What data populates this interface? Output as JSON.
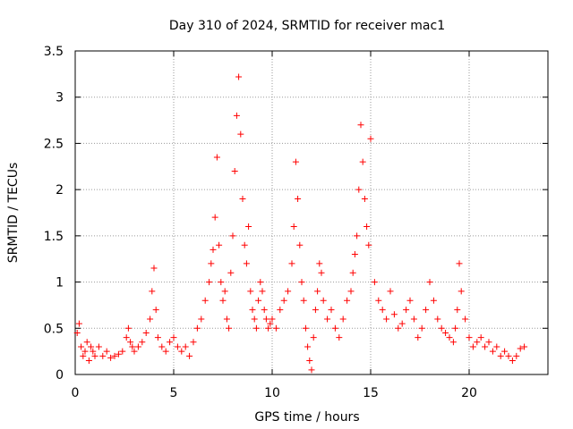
{
  "chart_data": {
    "type": "scatter",
    "title": "Day 310 of 2024, SRMTID for receiver mac1",
    "xlabel": "GPS time / hours",
    "ylabel": "SRMTID / TECUs",
    "xlim": [
      0,
      24
    ],
    "ylim": [
      0,
      3.5
    ],
    "grid": true,
    "legend": "none",
    "marker": "+",
    "color": "#ff0000",
    "x_ticks": [
      {
        "value": 0,
        "label": "0"
      },
      {
        "value": 5,
        "label": "5"
      },
      {
        "value": 10,
        "label": "10"
      },
      {
        "value": 15,
        "label": "15"
      },
      {
        "value": 20,
        "label": "20"
      }
    ],
    "y_ticks": [
      {
        "value": 0,
        "label": "0"
      },
      {
        "value": 0.5,
        "label": "0.5"
      },
      {
        "value": 1,
        "label": "1"
      },
      {
        "value": 1.5,
        "label": "1.5"
      },
      {
        "value": 2,
        "label": "2"
      },
      {
        "value": 2.5,
        "label": "2.5"
      },
      {
        "value": 3,
        "label": "3"
      },
      {
        "value": 3.5,
        "label": "3.5"
      }
    ],
    "series": [
      {
        "name": "SRMTID",
        "x": [
          0.1,
          0.2,
          0.3,
          0.4,
          0.5,
          0.6,
          0.7,
          0.8,
          0.9,
          1.0,
          1.2,
          1.4,
          1.6,
          1.8,
          2.0,
          2.2,
          2.4,
          2.6,
          2.7,
          2.8,
          2.9,
          3.0,
          3.2,
          3.4,
          3.6,
          3.8,
          3.9,
          4.0,
          4.1,
          4.2,
          4.4,
          4.6,
          4.8,
          5.0,
          5.2,
          5.4,
          5.6,
          5.8,
          6.0,
          6.2,
          6.4,
          6.6,
          6.8,
          6.9,
          7.0,
          7.1,
          7.2,
          7.3,
          7.4,
          7.5,
          7.6,
          7.7,
          7.8,
          7.9,
          8.0,
          8.1,
          8.2,
          8.3,
          8.4,
          8.5,
          8.6,
          8.7,
          8.8,
          8.9,
          9.0,
          9.1,
          9.2,
          9.3,
          9.4,
          9.5,
          9.6,
          9.7,
          9.8,
          9.9,
          10.0,
          10.2,
          10.4,
          10.6,
          10.8,
          11.0,
          11.1,
          11.2,
          11.3,
          11.4,
          11.5,
          11.6,
          11.7,
          11.8,
          11.9,
          12.0,
          12.1,
          12.2,
          12.3,
          12.4,
          12.5,
          12.6,
          12.8,
          13.0,
          13.2,
          13.4,
          13.6,
          13.8,
          14.0,
          14.1,
          14.2,
          14.3,
          14.4,
          14.5,
          14.6,
          14.7,
          14.8,
          14.9,
          15.0,
          15.2,
          15.4,
          15.6,
          15.8,
          16.0,
          16.2,
          16.4,
          16.6,
          16.8,
          17.0,
          17.2,
          17.4,
          17.6,
          17.8,
          18.0,
          18.2,
          18.4,
          18.6,
          18.8,
          19.0,
          19.2,
          19.3,
          19.4,
          19.5,
          19.6,
          19.8,
          20.0,
          20.2,
          20.4,
          20.6,
          20.8,
          21.0,
          21.2,
          21.4,
          21.6,
          21.8,
          22.0,
          22.2,
          22.4,
          22.6,
          22.8
        ],
        "y": [
          0.45,
          0.55,
          0.3,
          0.2,
          0.25,
          0.35,
          0.15,
          0.3,
          0.25,
          0.2,
          0.3,
          0.2,
          0.25,
          0.18,
          0.2,
          0.22,
          0.25,
          0.4,
          0.5,
          0.35,
          0.3,
          0.25,
          0.3,
          0.35,
          0.45,
          0.6,
          0.9,
          1.15,
          0.7,
          0.4,
          0.3,
          0.25,
          0.35,
          0.4,
          0.3,
          0.25,
          0.3,
          0.2,
          0.35,
          0.5,
          0.6,
          0.8,
          1.0,
          1.2,
          1.35,
          1.7,
          2.35,
          1.4,
          1.0,
          0.8,
          0.9,
          0.6,
          0.5,
          1.1,
          1.5,
          2.2,
          2.8,
          3.22,
          2.6,
          1.9,
          1.4,
          1.2,
          1.6,
          0.9,
          0.7,
          0.6,
          0.5,
          0.8,
          1.0,
          0.9,
          0.7,
          0.6,
          0.5,
          0.55,
          0.6,
          0.5,
          0.7,
          0.8,
          0.9,
          1.2,
          1.6,
          2.3,
          1.9,
          1.4,
          1.0,
          0.8,
          0.5,
          0.3,
          0.15,
          0.05,
          0.4,
          0.7,
          0.9,
          1.2,
          1.1,
          0.8,
          0.6,
          0.7,
          0.5,
          0.4,
          0.6,
          0.8,
          0.9,
          1.1,
          1.3,
          1.5,
          2.0,
          2.7,
          2.3,
          1.9,
          1.6,
          1.4,
          2.55,
          1.0,
          0.8,
          0.7,
          0.6,
          0.9,
          0.65,
          0.5,
          0.55,
          0.7,
          0.8,
          0.6,
          0.4,
          0.5,
          0.7,
          1.0,
          0.8,
          0.6,
          0.5,
          0.45,
          0.4,
          0.35,
          0.5,
          0.7,
          1.2,
          0.9,
          0.6,
          0.4,
          0.3,
          0.35,
          0.4,
          0.3,
          0.35,
          0.25,
          0.3,
          0.2,
          0.25,
          0.2,
          0.15,
          0.2,
          0.28,
          0.3
        ]
      }
    ]
  }
}
